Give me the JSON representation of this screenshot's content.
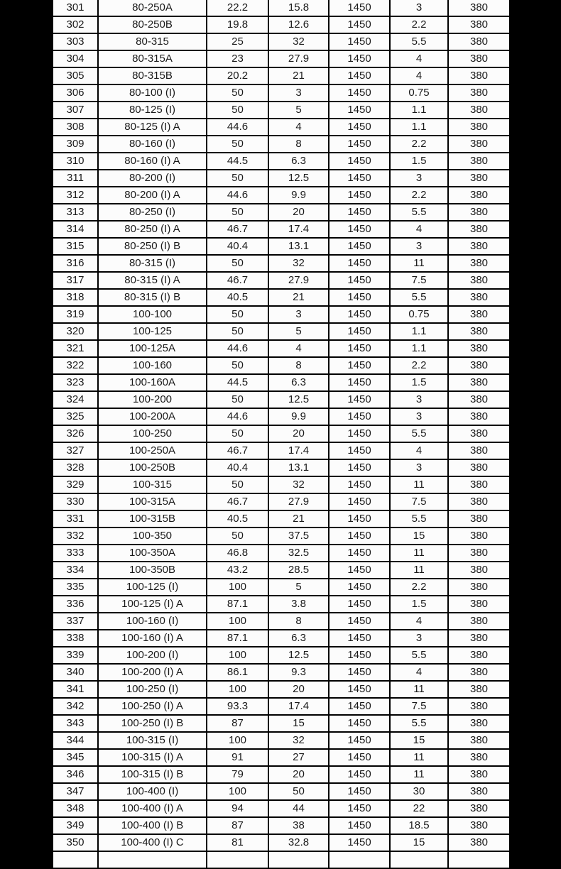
{
  "page": {
    "background_color": "#000000"
  },
  "table": {
    "border_color": "#000000",
    "cell_background": "#fcfcfc",
    "text_color": "#1a1a1a",
    "column_keys": [
      "no",
      "model",
      "flow",
      "head",
      "speed",
      "power",
      "voltage"
    ],
    "rows": [
      [
        "301",
        "80-250A",
        "22.2",
        "15.8",
        "1450",
        "3",
        "380"
      ],
      [
        "302",
        "80-250B",
        "19.8",
        "12.6",
        "1450",
        "2.2",
        "380"
      ],
      [
        "303",
        "80-315",
        "25",
        "32",
        "1450",
        "5.5",
        "380"
      ],
      [
        "304",
        "80-315A",
        "23",
        "27.9",
        "1450",
        "4",
        "380"
      ],
      [
        "305",
        "80-315B",
        "20.2",
        "21",
        "1450",
        "4",
        "380"
      ],
      [
        "306",
        "80-100 (I)",
        "50",
        "3",
        "1450",
        "0.75",
        "380"
      ],
      [
        "307",
        "80-125 (I)",
        "50",
        "5",
        "1450",
        "1.1",
        "380"
      ],
      [
        "308",
        "80-125 (I) A",
        "44.6",
        "4",
        "1450",
        "1.1",
        "380"
      ],
      [
        "309",
        "80-160 (I)",
        "50",
        "8",
        "1450",
        "2.2",
        "380"
      ],
      [
        "310",
        "80-160 (I) A",
        "44.5",
        "6.3",
        "1450",
        "1.5",
        "380"
      ],
      [
        "311",
        "80-200 (I)",
        "50",
        "12.5",
        "1450",
        "3",
        "380"
      ],
      [
        "312",
        "80-200 (I) A",
        "44.6",
        "9.9",
        "1450",
        "2.2",
        "380"
      ],
      [
        "313",
        "80-250 (I)",
        "50",
        "20",
        "1450",
        "5.5",
        "380"
      ],
      [
        "314",
        "80-250 (I) A",
        "46.7",
        "17.4",
        "1450",
        "4",
        "380"
      ],
      [
        "315",
        "80-250 (I) B",
        "40.4",
        "13.1",
        "1450",
        "3",
        "380"
      ],
      [
        "316",
        "80-315 (I)",
        "50",
        "32",
        "1450",
        "11",
        "380"
      ],
      [
        "317",
        "80-315 (I) A",
        "46.7",
        "27.9",
        "1450",
        "7.5",
        "380"
      ],
      [
        "318",
        "80-315 (I) B",
        "40.5",
        "21",
        "1450",
        "5.5",
        "380"
      ],
      [
        "319",
        "100-100",
        "50",
        "3",
        "1450",
        "0.75",
        "380"
      ],
      [
        "320",
        "100-125",
        "50",
        "5",
        "1450",
        "1.1",
        "380"
      ],
      [
        "321",
        "100-125A",
        "44.6",
        "4",
        "1450",
        "1.1",
        "380"
      ],
      [
        "322",
        "100-160",
        "50",
        "8",
        "1450",
        "2.2",
        "380"
      ],
      [
        "323",
        "100-160A",
        "44.5",
        "6.3",
        "1450",
        "1.5",
        "380"
      ],
      [
        "324",
        "100-200",
        "50",
        "12.5",
        "1450",
        "3",
        "380"
      ],
      [
        "325",
        "100-200A",
        "44.6",
        "9.9",
        "1450",
        "3",
        "380"
      ],
      [
        "326",
        "100-250",
        "50",
        "20",
        "1450",
        "5.5",
        "380"
      ],
      [
        "327",
        "100-250A",
        "46.7",
        "17.4",
        "1450",
        "4",
        "380"
      ],
      [
        "328",
        "100-250B",
        "40.4",
        "13.1",
        "1450",
        "3",
        "380"
      ],
      [
        "329",
        "100-315",
        "50",
        "32",
        "1450",
        "11",
        "380"
      ],
      [
        "330",
        "100-315A",
        "46.7",
        "27.9",
        "1450",
        "7.5",
        "380"
      ],
      [
        "331",
        "100-315B",
        "40.5",
        "21",
        "1450",
        "5.5",
        "380"
      ],
      [
        "332",
        "100-350",
        "50",
        "37.5",
        "1450",
        "15",
        "380"
      ],
      [
        "333",
        "100-350A",
        "46.8",
        "32.5",
        "1450",
        "11",
        "380"
      ],
      [
        "334",
        "100-350B",
        "43.2",
        "28.5",
        "1450",
        "11",
        "380"
      ],
      [
        "335",
        "100-125 (I)",
        "100",
        "5",
        "1450",
        "2.2",
        "380"
      ],
      [
        "336",
        "100-125 (I) A",
        "87.1",
        "3.8",
        "1450",
        "1.5",
        "380"
      ],
      [
        "337",
        "100-160 (I)",
        "100",
        "8",
        "1450",
        "4",
        "380"
      ],
      [
        "338",
        "100-160 (I) A",
        "87.1",
        "6.3",
        "1450",
        "3",
        "380"
      ],
      [
        "339",
        "100-200 (I)",
        "100",
        "12.5",
        "1450",
        "5.5",
        "380"
      ],
      [
        "340",
        "100-200 (I) A",
        "86.1",
        "9.3",
        "1450",
        "4",
        "380"
      ],
      [
        "341",
        "100-250 (I)",
        "100",
        "20",
        "1450",
        "11",
        "380"
      ],
      [
        "342",
        "100-250 (I) A",
        "93.3",
        "17.4",
        "1450",
        "7.5",
        "380"
      ],
      [
        "343",
        "100-250 (I) B",
        "87",
        "15",
        "1450",
        "5.5",
        "380"
      ],
      [
        "344",
        "100-315 (I)",
        "100",
        "32",
        "1450",
        "15",
        "380"
      ],
      [
        "345",
        "100-315 (I) A",
        "91",
        "27",
        "1450",
        "11",
        "380"
      ],
      [
        "346",
        "100-315 (I) B",
        "79",
        "20",
        "1450",
        "11",
        "380"
      ],
      [
        "347",
        "100-400 (I)",
        "100",
        "50",
        "1450",
        "30",
        "380"
      ],
      [
        "348",
        "100-400 (I) A",
        "94",
        "44",
        "1450",
        "22",
        "380"
      ],
      [
        "349",
        "100-400 (I) B",
        "87",
        "38",
        "1450",
        "18.5",
        "380"
      ],
      [
        "350",
        "100-400 (I) C",
        "81",
        "32.8",
        "1450",
        "15",
        "380"
      ]
    ],
    "partial_next_row": [
      "",
      "",
      "",
      "",
      "",
      "",
      ""
    ]
  }
}
